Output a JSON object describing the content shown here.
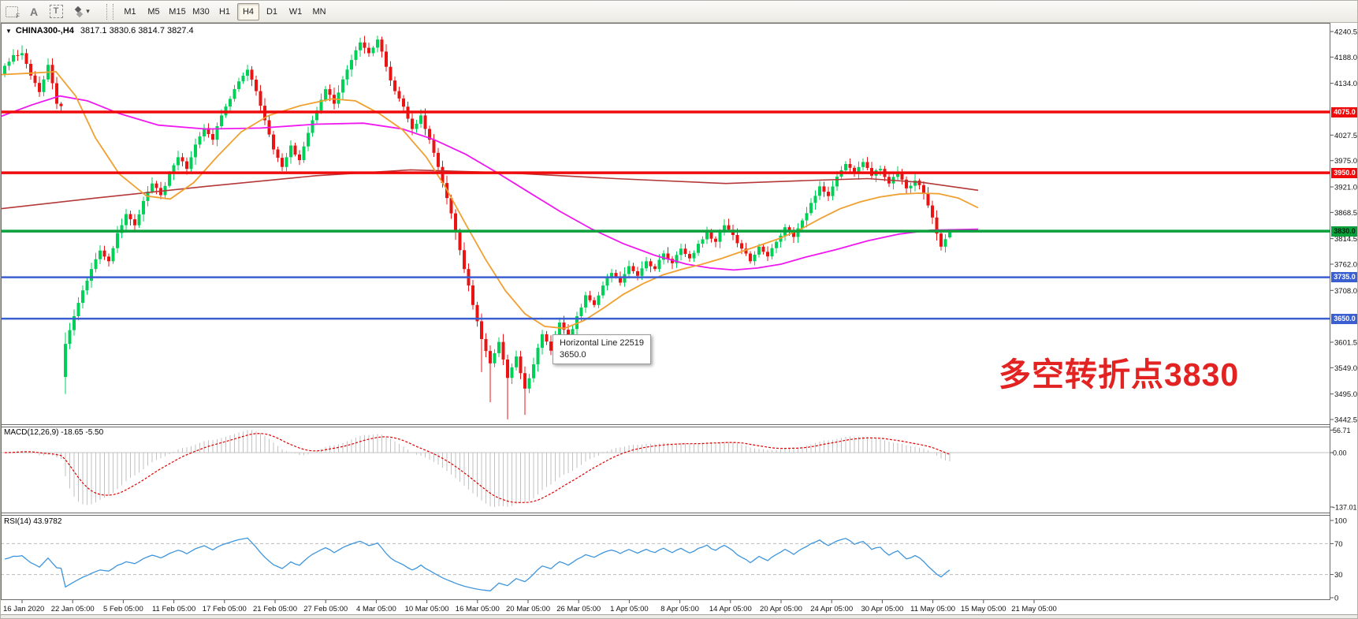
{
  "toolbar": {
    "icon_f_label": "F",
    "icon_a_label": "A",
    "icon_t_label": "T",
    "dropdown_caret": "▾",
    "timeframes": [
      "M1",
      "M5",
      "M15",
      "M30",
      "H1",
      "H4",
      "D1",
      "W1",
      "MN"
    ],
    "active_timeframe": "H4"
  },
  "chart": {
    "collapse_glyph": "▼",
    "title_symbol": "CHINA300-,H4",
    "title_ohlc": "3817.1 3830.6 3814.7 3827.4",
    "annotation": {
      "text": "多空转折点3830",
      "color": "#e32222"
    },
    "tooltip": {
      "line1": "Horizontal Line 22519",
      "line2": "3650.0"
    }
  },
  "macd_panel": {
    "label": "MACD(12,26,9) -18.65 -5.50",
    "axis_labels": [
      "56.71",
      "0.00",
      "-137.01"
    ]
  },
  "rsi_panel": {
    "label": "RSI(14) 43.9782",
    "axis_labels": [
      "100",
      "70",
      "30",
      "0"
    ]
  },
  "chart_data": {
    "type": "candlestick",
    "symbol": "CHINA300-,H4",
    "current_bar_ohlc": [
      3817.1,
      3830.6,
      3814.7,
      3827.4
    ],
    "y_range": [
      3442.5,
      4240.5
    ],
    "y_tick_prices": [
      4240.5,
      4188.0,
      4134.0,
      4027.5,
      3975.0,
      3921.0,
      3868.5,
      3814.5,
      3762.0,
      3708.0,
      3601.5,
      3549.0,
      3495.0,
      3442.5
    ],
    "x_tick_labels": [
      "16 Jan 2020",
      "22 Jan 05:00",
      "5 Feb 05:00",
      "11 Feb 05:00",
      "17 Feb 05:00",
      "21 Feb 05:00",
      "27 Feb 05:00",
      "4 Mar 05:00",
      "10 Mar 05:00",
      "16 Mar 05:00",
      "20 Mar 05:00",
      "26 Mar 05:00",
      "1 Apr 05:00",
      "8 Apr 05:00",
      "14 Apr 05:00",
      "20 Apr 05:00",
      "24 Apr 05:00",
      "30 Apr 05:00",
      "11 May 05:00",
      "15 May 05:00",
      "21 May 05:00"
    ],
    "first_open": 4152,
    "closes": [
      4170,
      4192,
      4196,
      4150,
      4116,
      4172,
      4092,
      3598,
      3655,
      3708,
      3752,
      3790,
      3768,
      3826,
      3865,
      3842,
      3892,
      3928,
      3904,
      3948,
      3982,
      3958,
      4008,
      4042,
      4018,
      4068,
      4102,
      4138,
      4162,
      4118,
      4058,
      3998,
      3962,
      4006,
      3976,
      4032,
      4078,
      4122,
      4092,
      4142,
      4182,
      4218,
      4196,
      4224,
      4168,
      4118,
      4086,
      4040,
      4068,
      4018,
      3962,
      3898,
      3828,
      3752,
      3678,
      3608,
      3558,
      3602,
      3528,
      3572,
      3506,
      3556,
      3618,
      3584,
      3642,
      3606,
      3655,
      3698,
      3678,
      3718,
      3744,
      3724,
      3758,
      3738,
      3768,
      3752,
      3784,
      3764,
      3794,
      3774,
      3804,
      3828,
      3808,
      3842,
      3822,
      3794,
      3768,
      3798,
      3778,
      3808,
      3838,
      3818,
      3852,
      3888,
      3922,
      3902,
      3942,
      3968,
      3948,
      3972,
      3944,
      3958,
      3928,
      3952,
      3918,
      3934,
      3908,
      3858,
      3798,
      3827.4
    ],
    "overrides": {
      "open": {
        "7": 3530,
        "109": 3817.1
      },
      "high": {
        "2": 4212,
        "41": 4228,
        "43": 4232,
        "109": 3830.6
      },
      "low": {
        "7": 3495,
        "55": 3540,
        "56": 3478,
        "58": 3443,
        "60": 3452,
        "109": 3814.7
      }
    },
    "horizontal_lines": [
      {
        "price": 4075.0,
        "label": "4075.0",
        "color": "#ef0b0b",
        "stroke": 3.5,
        "text": "#ffffff"
      },
      {
        "price": 3950.0,
        "label": "3950.0",
        "color": "#ef0b0b",
        "stroke": 3.5,
        "text": "#ffffff"
      },
      {
        "price": 3830.0,
        "label": "3830.0",
        "color": "#0aa03c",
        "stroke": 3.5,
        "text": "#00220c"
      },
      {
        "price": 3735.0,
        "label": "3735.0",
        "color": "#3b5fd0",
        "stroke": 2.5,
        "text": "#ffffff"
      },
      {
        "price": 3650.0,
        "label": "3650.0",
        "color": "#3b5fd0",
        "stroke": 2.5,
        "text": "#ffffff"
      }
    ],
    "ma_orange": [
      [
        0,
        4152
      ],
      [
        40,
        4155
      ],
      [
        70,
        4158
      ],
      [
        95,
        4108
      ],
      [
        120,
        4022
      ],
      [
        150,
        3948
      ],
      [
        185,
        3902
      ],
      [
        215,
        3896
      ],
      [
        245,
        3930
      ],
      [
        275,
        3984
      ],
      [
        305,
        4034
      ],
      [
        340,
        4068
      ],
      [
        380,
        4088
      ],
      [
        420,
        4102
      ],
      [
        450,
        4098
      ],
      [
        480,
        4072
      ],
      [
        510,
        4038
      ],
      [
        540,
        3982
      ],
      [
        565,
        3918
      ],
      [
        590,
        3844
      ],
      [
        615,
        3772
      ],
      [
        640,
        3708
      ],
      [
        665,
        3660
      ],
      [
        690,
        3634
      ],
      [
        715,
        3630
      ],
      [
        740,
        3646
      ],
      [
        765,
        3672
      ],
      [
        790,
        3700
      ],
      [
        815,
        3722
      ],
      [
        840,
        3740
      ],
      [
        865,
        3752
      ],
      [
        890,
        3762
      ],
      [
        915,
        3774
      ],
      [
        940,
        3788
      ],
      [
        965,
        3802
      ],
      [
        990,
        3816
      ],
      [
        1015,
        3834
      ],
      [
        1040,
        3856
      ],
      [
        1065,
        3876
      ],
      [
        1090,
        3890
      ],
      [
        1115,
        3900
      ],
      [
        1140,
        3906
      ],
      [
        1165,
        3908
      ],
      [
        1190,
        3907
      ],
      [
        1215,
        3898
      ],
      [
        1240,
        3878
      ]
    ],
    "ma_magenta": [
      [
        0,
        4066
      ],
      [
        40,
        4090
      ],
      [
        75,
        4108
      ],
      [
        110,
        4098
      ],
      [
        150,
        4072
      ],
      [
        200,
        4048
      ],
      [
        260,
        4040
      ],
      [
        330,
        4042
      ],
      [
        400,
        4050
      ],
      [
        460,
        4052
      ],
      [
        510,
        4040
      ],
      [
        550,
        4018
      ],
      [
        590,
        3988
      ],
      [
        630,
        3950
      ],
      [
        670,
        3910
      ],
      [
        710,
        3870
      ],
      [
        750,
        3834
      ],
      [
        790,
        3804
      ],
      [
        830,
        3780
      ],
      [
        870,
        3762
      ],
      [
        900,
        3754
      ],
      [
        930,
        3750
      ],
      [
        960,
        3754
      ],
      [
        990,
        3762
      ],
      [
        1020,
        3776
      ],
      [
        1060,
        3792
      ],
      [
        1100,
        3810
      ],
      [
        1140,
        3824
      ],
      [
        1180,
        3832
      ],
      [
        1240,
        3834
      ]
    ],
    "ma_darkred": [
      [
        0,
        3876
      ],
      [
        120,
        3898
      ],
      [
        260,
        3922
      ],
      [
        400,
        3944
      ],
      [
        520,
        3956
      ],
      [
        640,
        3950
      ],
      [
        780,
        3938
      ],
      [
        920,
        3928
      ],
      [
        1020,
        3934
      ],
      [
        1100,
        3938
      ],
      [
        1170,
        3930
      ],
      [
        1240,
        3914
      ]
    ],
    "macd": {
      "params": "12,26,9",
      "current_macd": -18.65,
      "current_signal": -5.5,
      "scale_max": 56.71,
      "scale_min": -137.01
    },
    "rsi": {
      "period": 14,
      "current": 43.9782,
      "levels": [
        70,
        30
      ],
      "range": [
        0,
        100
      ]
    },
    "colors": {
      "candle_up": "#00d058",
      "candle_down": "#e91414",
      "ma_orange": "#f0a030",
      "ma_magenta": "#f018f0",
      "ma_darkred": "#b53838",
      "macd_bar": "#c2c2c2",
      "macd_signal": "#e00000",
      "rsi_line": "#3f95db"
    }
  }
}
